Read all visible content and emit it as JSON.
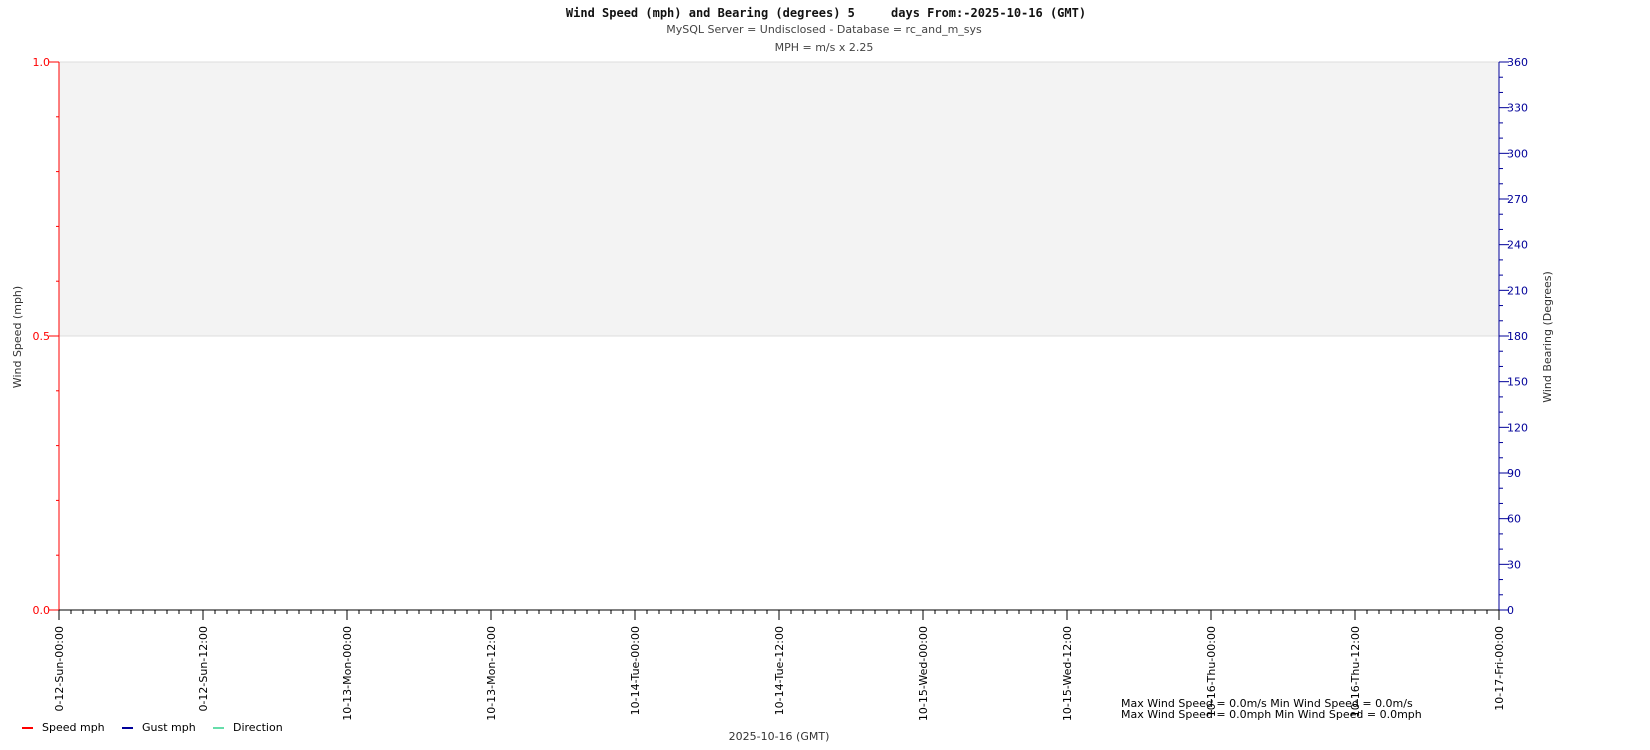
{
  "chart_data": {
    "type": "line",
    "title": "Wind Speed (mph) and Bearing (degrees) 5     days From:-2025-10-16 (GMT)",
    "subtitle": "MySQL Server = Undisclosed - Database = rc_and_m_sys",
    "subtitle2": "MPH = m/s x 2.25",
    "xlabel": "2025-10-16 (GMT)",
    "ylabel": "Wind Speed (mph)",
    "y2label": "Wind Bearing (Degrees)",
    "ylim": [
      0,
      1.0
    ],
    "y2lim": [
      0,
      360
    ],
    "y_ticks": [
      "0.0",
      "0.5",
      "1.0"
    ],
    "y2_ticks": [
      "0",
      "30",
      "60",
      "90",
      "120",
      "150",
      "180",
      "210",
      "240",
      "270",
      "300",
      "330",
      "360"
    ],
    "x_ticks": [
      "0-12-Sun-00:00",
      "0-12-Sun-12:00",
      "10-13-Mon-00:00",
      "10-13-Mon-12:00",
      "10-14-Tue-00:00",
      "10-14-Tue-12:00",
      "10-15-Wed-00:00",
      "10-15-Wed-12:00",
      "10-16-Thu-00:00",
      "10-16-Thu-12:00",
      "10-17-Fri-00:00"
    ],
    "grid": true,
    "legend_placement": "bottom-left",
    "series": [
      {
        "name": "Speed mph",
        "color": "#ff0000",
        "values": []
      },
      {
        "name": "Gust mph",
        "color": "#000099",
        "values": []
      },
      {
        "name": "Direction",
        "color": "#66ddaa",
        "values": []
      }
    ],
    "annotations": [
      "Max Wind Speed = 0.0m/s Min Wind Speed = 0.0m/s",
      "Max Wind Speed = 0.0mph Min Wind Speed = 0.0mph"
    ],
    "colors": {
      "left_axis": "#ff0000",
      "right_axis": "#000099",
      "upper_band": "#f3f3f3"
    }
  }
}
